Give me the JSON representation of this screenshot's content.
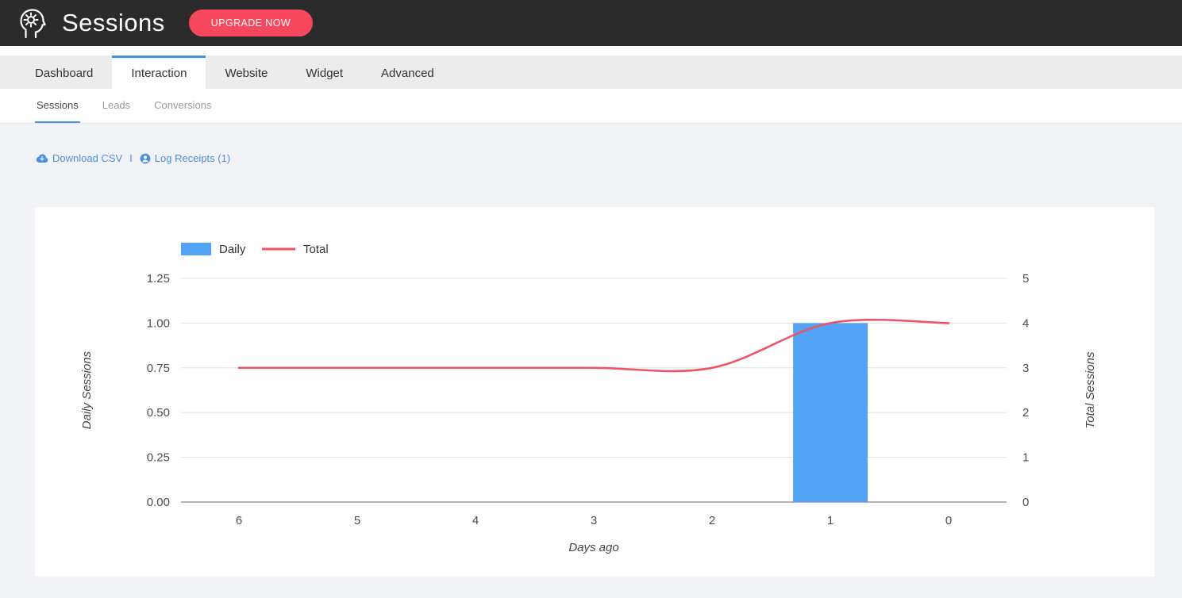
{
  "header": {
    "title": "Sessions",
    "upgrade_button_label": "UPGRADE NOW"
  },
  "main_nav": {
    "items": [
      {
        "label": "Dashboard",
        "active": false
      },
      {
        "label": "Interaction",
        "active": true
      },
      {
        "label": "Website",
        "active": false
      },
      {
        "label": "Widget",
        "active": false
      },
      {
        "label": "Advanced",
        "active": false
      }
    ]
  },
  "sub_nav": {
    "items": [
      {
        "label": "Sessions",
        "active": true
      },
      {
        "label": "Leads",
        "active": false
      },
      {
        "label": "Conversions",
        "active": false
      }
    ]
  },
  "toolbar": {
    "download_csv_label": "Download CSV",
    "separator": "I",
    "log_receipts_label": "Log Receipts (1)"
  },
  "icons": {
    "logo": "head-gear-icon",
    "download": "cloud-download-icon",
    "receipts": "user-circle-icon"
  },
  "colors": {
    "topbar_bg": "#2b2b2b",
    "upgrade_bg": "#f8485e",
    "accent_blue": "#4a90e2",
    "bar_color": "#52a3f5",
    "line_color": "#ed5565",
    "grid_color": "#e0e0e0",
    "axis_color": "#6b6b6b",
    "page_bg": "#f2f3f7"
  },
  "chart_data": {
    "type": "bar+line",
    "x": [
      6,
      5,
      4,
      3,
      2,
      1,
      0
    ],
    "xlabel": "Days ago",
    "grid": true,
    "legend_position": "top-left",
    "left_axis": {
      "label": "Daily Sessions",
      "min": 0,
      "max": 1.25,
      "ticks": [
        0,
        0.25,
        0.5,
        0.75,
        1,
        1.25
      ],
      "tick_labels": [
        "0.00",
        "0.25",
        "0.50",
        "0.75",
        "1.00",
        "1.25"
      ]
    },
    "right_axis": {
      "label": "Total Sessions",
      "min": 0,
      "max": 5,
      "ticks": [
        0,
        1,
        2,
        3,
        4,
        5
      ],
      "tick_labels": [
        "0",
        "1",
        "2",
        "3",
        "4",
        "5"
      ]
    },
    "series": [
      {
        "name": "Daily",
        "type": "bar",
        "axis": "left",
        "values": [
          0,
          0,
          0,
          0,
          0,
          1,
          0
        ]
      },
      {
        "name": "Total",
        "type": "line",
        "axis": "right",
        "values": [
          3,
          3,
          3,
          3,
          3,
          4,
          4
        ]
      }
    ],
    "legend": [
      {
        "label": "Daily",
        "swatch": "rect"
      },
      {
        "label": "Total",
        "swatch": "line"
      }
    ]
  }
}
